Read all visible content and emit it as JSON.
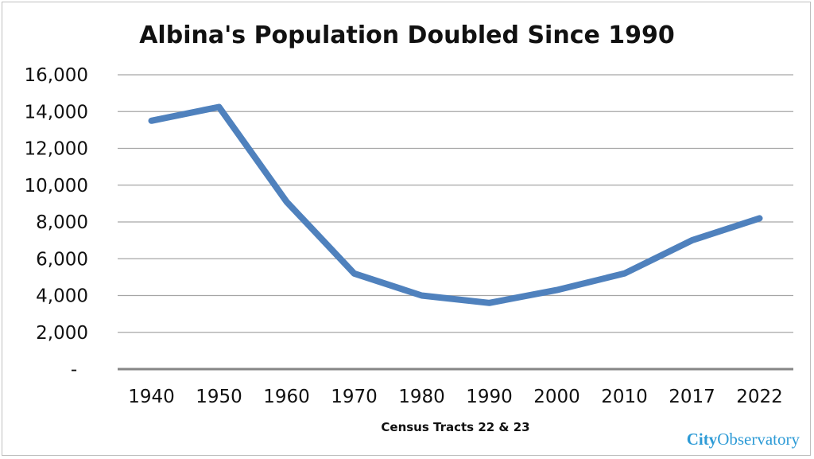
{
  "chart_data": {
    "type": "line",
    "title": "Albina's Population Doubled Since 1990",
    "xlabel": "Census Tracts 22 & 23",
    "ylabel": "",
    "categories": [
      "1940",
      "1950",
      "1960",
      "1970",
      "1980",
      "1990",
      "2000",
      "2010",
      "2017",
      "2022"
    ],
    "series": [
      {
        "values": [
          13500,
          14250,
          9100,
          5200,
          4000,
          3600,
          4300,
          5200,
          7000,
          8200
        ]
      }
    ],
    "ylim": [
      0,
      16000
    ],
    "yticks": [
      0,
      2000,
      4000,
      6000,
      8000,
      10000,
      12000,
      14000,
      16000
    ],
    "ytick_labels": [
      "-",
      "2,000",
      "4,000",
      "6,000",
      "8,000",
      "10,000",
      "12,000",
      "14,000",
      "16,000"
    ],
    "grid": true,
    "line_color": "#4f81bd"
  },
  "brand": {
    "part1": "City",
    "part2": "Observatory",
    "color": "#2e9bd6"
  }
}
